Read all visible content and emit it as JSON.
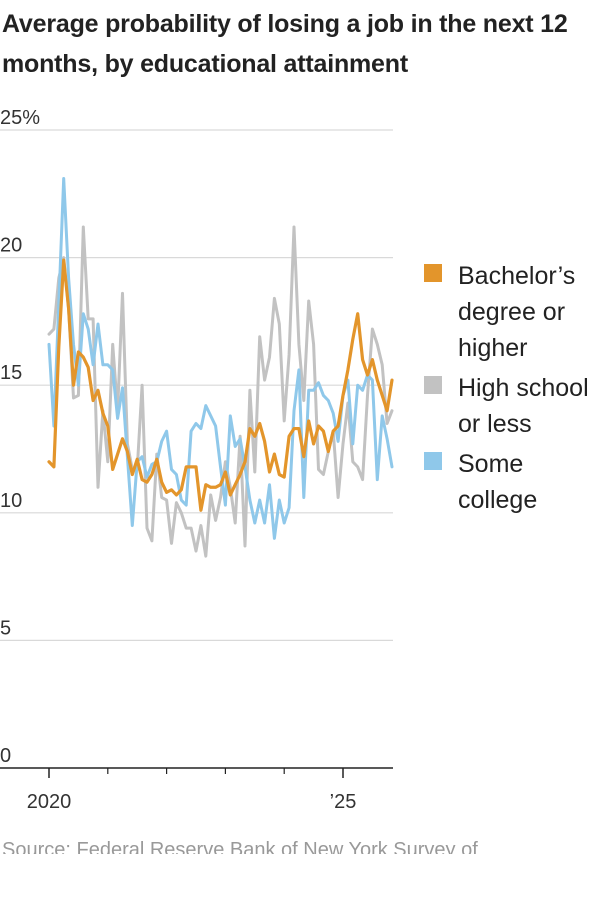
{
  "title": "Average probability of losing a job in the next 12 months, by educational attainment",
  "source_text": "Source: Federal Reserve Bank of New York Survey of",
  "chart_data": {
    "type": "line",
    "title": "Average probability of losing a job in the next 12 months, by educational attainment",
    "xlabel": "",
    "ylabel": "",
    "ylim": [
      0,
      25
    ],
    "xlim": [
      "2020-01",
      "2026-01"
    ],
    "y_ticks": [
      0,
      5,
      10,
      15,
      20,
      25
    ],
    "y_tick_labels": [
      "0",
      "5",
      "10",
      "15",
      "20",
      "25%"
    ],
    "x_tick_labels": [
      {
        "date": "2020-01",
        "label": "2020"
      },
      {
        "date": "2025-01",
        "label": "’25"
      }
    ],
    "x_minor_ticks": [
      "2021-01",
      "2022-01",
      "2023-01",
      "2024-01"
    ],
    "grid": true,
    "legend_position": "right",
    "colors": {
      "bachelors": "#e3952b",
      "high_school": "#c2c2c2",
      "some_college": "#8fc8ea",
      "grid": "#d9d9d9",
      "axis": "#222222"
    },
    "series": [
      {
        "name": "Bachelor’s degree or higher",
        "color": "#e3952b",
        "start": "2020-01",
        "frequency": "monthly",
        "values": [
          12.0,
          11.8,
          16.5,
          19.9,
          18.0,
          15.0,
          16.3,
          16.1,
          15.7,
          14.4,
          14.8,
          13.9,
          13.4,
          11.7,
          12.3,
          12.9,
          12.4,
          11.5,
          12.1,
          11.3,
          11.2,
          11.5,
          12.1,
          11.2,
          10.8,
          10.9,
          10.7,
          10.9,
          11.8,
          11.8,
          11.8,
          10.1,
          11.1,
          11.0,
          11.0,
          11.1,
          11.6,
          10.7,
          11.1,
          11.5,
          12.0,
          13.3,
          13.0,
          13.5,
          12.8,
          11.6,
          12.3,
          11.5,
          11.4,
          13.0,
          13.3,
          13.3,
          12.2,
          13.6,
          12.7,
          13.4,
          13.2,
          12.4,
          13.2,
          13.4,
          14.6,
          15.6,
          16.8,
          17.8,
          16.0,
          15.4,
          16.0,
          15.2,
          14.6,
          14.0,
          15.2
        ]
      },
      {
        "name": "High school or less",
        "color": "#c2c2c2",
        "start": "2020-01",
        "frequency": "monthly",
        "values": [
          17.0,
          17.2,
          19.2,
          20.0,
          18.0,
          14.5,
          14.6,
          21.2,
          17.6,
          17.6,
          11.0,
          14.0,
          12.0,
          16.6,
          14.0,
          18.6,
          12.7,
          11.7,
          11.7,
          15.0,
          9.4,
          8.9,
          12.3,
          10.6,
          10.5,
          8.8,
          10.4,
          10.0,
          9.4,
          9.4,
          8.5,
          9.5,
          8.3,
          10.7,
          9.7,
          10.6,
          12.0,
          11.0,
          9.6,
          13.0,
          8.7,
          14.8,
          11.6,
          16.9,
          15.2,
          16.1,
          18.4,
          17.4,
          13.6,
          16.2,
          21.2,
          16.6,
          14.4,
          18.3,
          16.6,
          11.7,
          11.5,
          12.4,
          13.2,
          10.6,
          12.7,
          14.3,
          12.0,
          11.8,
          11.3,
          14.6,
          17.2,
          16.6,
          15.8,
          13.5,
          14.0
        ]
      },
      {
        "name": "Some college",
        "color": "#8fc8ea",
        "start": "2020-01",
        "frequency": "monthly",
        "values": [
          16.6,
          13.4,
          18.2,
          23.1,
          19.2,
          16.6,
          15.0,
          17.8,
          17.2,
          15.8,
          17.4,
          15.8,
          15.8,
          15.6,
          13.7,
          14.9,
          12.2,
          9.5,
          12.0,
          12.2,
          11.4,
          11.9,
          12.0,
          12.8,
          13.2,
          11.7,
          11.5,
          10.5,
          10.3,
          13.2,
          13.5,
          13.3,
          14.2,
          13.8,
          13.4,
          11.8,
          10.3,
          13.8,
          12.6,
          12.9,
          11.8,
          10.5,
          9.6,
          10.5,
          9.6,
          11.1,
          9.0,
          10.5,
          9.6,
          10.2,
          14.0,
          15.6,
          10.6,
          14.8,
          14.8,
          15.1,
          14.6,
          14.4,
          13.9,
          12.8,
          14.6,
          15.2,
          12.7,
          15.0,
          14.8,
          15.4,
          15.2,
          11.3,
          13.8,
          12.9,
          11.8
        ]
      }
    ]
  }
}
